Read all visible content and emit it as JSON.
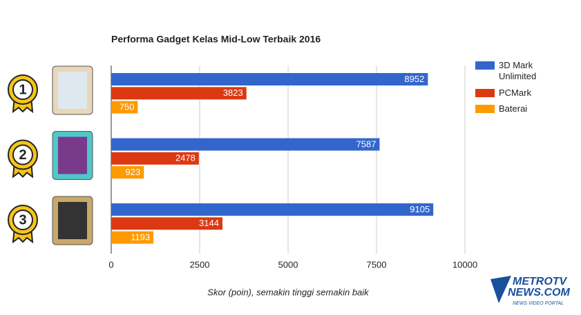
{
  "chart_data": {
    "type": "bar",
    "orientation": "horizontal",
    "title": "Performa Gadget Kelas Mid-Low Terbaik 2016",
    "x_label": "Skor (poin), semakin tinggi semakin baik",
    "categories": [
      "1",
      "2",
      "3"
    ],
    "series": [
      {
        "name": "3D Mark Unlimited",
        "color": "#3366cc",
        "values": [
          8952,
          7587,
          9105
        ]
      },
      {
        "name": "PCMark",
        "color": "#dc3912",
        "values": [
          3823,
          2478,
          3144
        ]
      },
      {
        "name": "Baterai",
        "color": "#ff9900",
        "values": [
          750,
          923,
          1193
        ]
      }
    ],
    "xlim": [
      0,
      10000
    ],
    "xticks": [
      0,
      2500,
      5000,
      7500,
      10000
    ],
    "grid": true,
    "legend": "right"
  },
  "logo": {
    "line1": "METROTV",
    "line2": "NEWS.COM",
    "tagline": "NEWS VIDEO PORTAL"
  }
}
